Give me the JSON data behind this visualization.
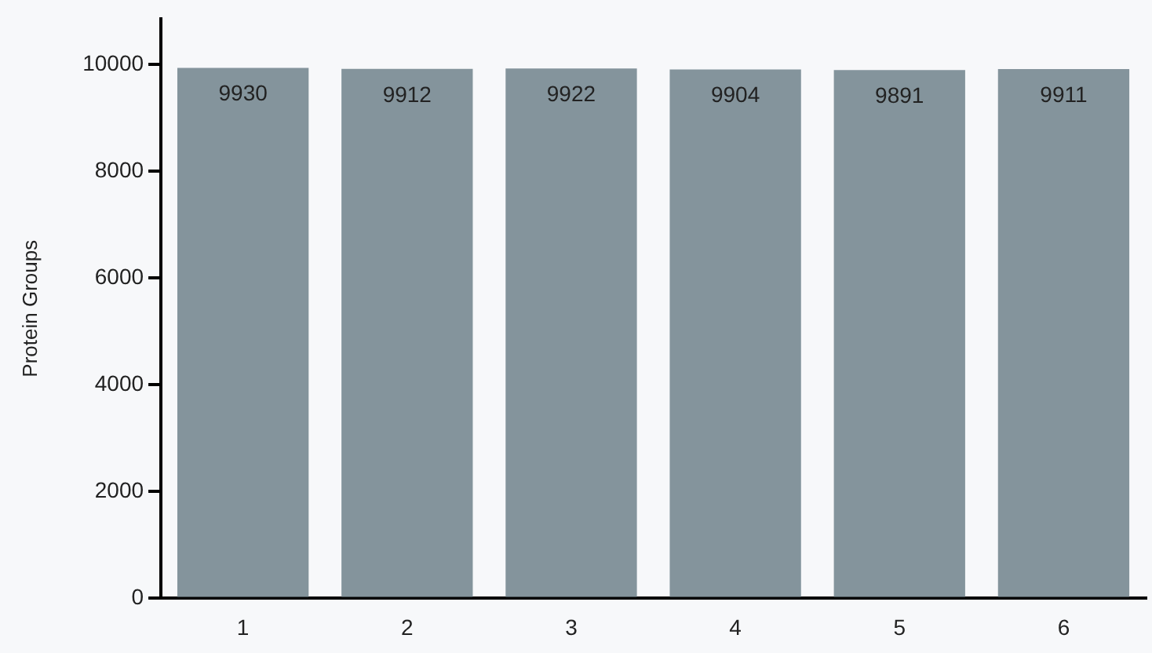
{
  "chart_data": {
    "type": "bar",
    "ylabel": "Protein Groups",
    "categories": [
      "1",
      "2",
      "3",
      "4",
      "5",
      "6"
    ],
    "values": [
      9930,
      9912,
      9922,
      9904,
      9891,
      9911
    ],
    "color": "#84949c",
    "data_labels": true,
    "ylim": [
      0,
      10850
    ],
    "yticks": [
      0,
      2000,
      4000,
      6000,
      8000,
      10000
    ],
    "grid": false,
    "legend": false
  }
}
